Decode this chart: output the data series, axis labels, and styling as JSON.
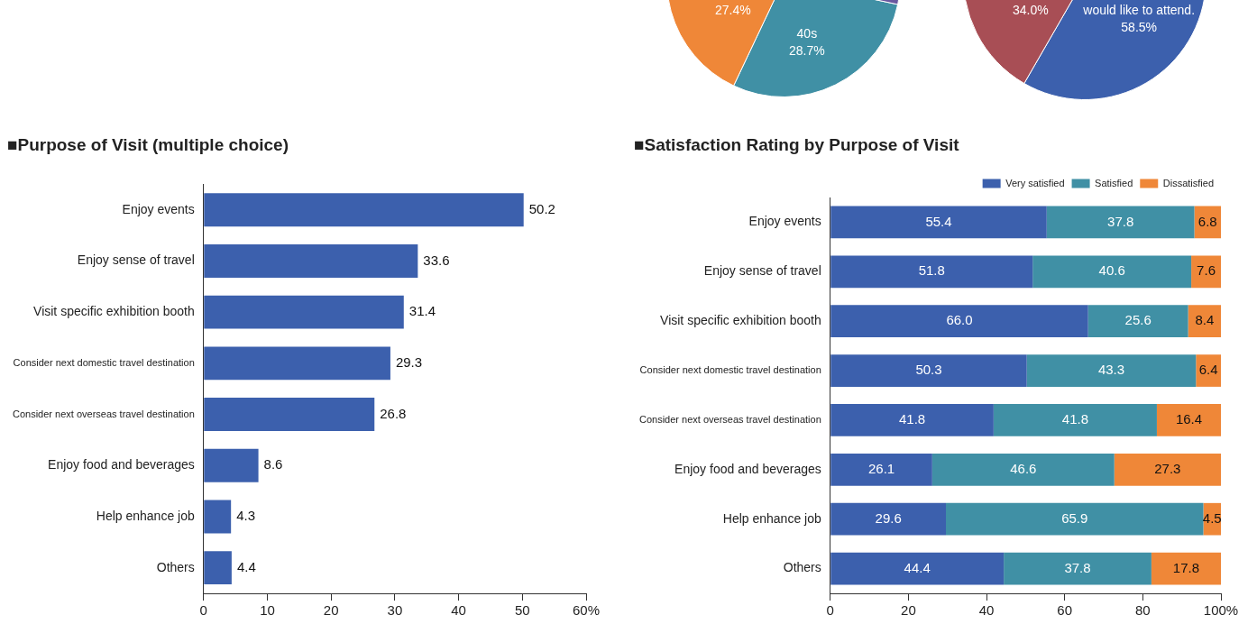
{
  "chart_data": [
    {
      "type": "pie",
      "categories": [
        "40s",
        null,
        null
      ],
      "values": [
        28.7,
        27.4,
        43.9
      ],
      "colors": [
        "#4090a5",
        "#ef8738",
        "#6a58a0"
      ],
      "value_labels": [
        "28.7%",
        "27.4%",
        null
      ]
    },
    {
      "type": "pie",
      "categories": [
        "would like to attend.",
        null
      ],
      "values": [
        58.5,
        34.0
      ],
      "colors": [
        "#3c60ad",
        "#a84e55"
      ],
      "value_labels": [
        "58.5%",
        "34.0%"
      ]
    },
    {
      "type": "bar",
      "orientation": "horizontal",
      "title": "■Purpose of Visit (multiple choice)",
      "categories": [
        "Enjoy events",
        "Enjoy sense of travel",
        "Visit specific exhibition booth",
        "Consider next domestic travel destination",
        "Consider next overseas travel destination",
        "Enjoy food and beverages",
        "Help enhance job",
        "Others"
      ],
      "values": [
        50.2,
        33.6,
        31.4,
        29.3,
        26.8,
        8.6,
        4.3,
        4.4
      ],
      "color": "#3c60ad",
      "xlim": [
        0,
        60
      ],
      "xticks": [
        0,
        10,
        20,
        30,
        40,
        50,
        {
          "value": 60,
          "label": "60%"
        }
      ],
      "data_labels": true,
      "grid": false
    },
    {
      "type": "bar",
      "orientation": "horizontal",
      "stacked": true,
      "title": "■Satisfaction Rating by Purpose of Visit",
      "categories": [
        "Enjoy events",
        "Enjoy sense of travel",
        "Visit specific exhibition booth",
        "Consider next domestic travel destination",
        "Consider next overseas travel destination",
        "Enjoy food and beverages",
        "Help enhance job",
        "Others"
      ],
      "series": [
        {
          "name": "Very satisfied",
          "color": "#3c60ad",
          "values": [
            55.4,
            51.8,
            66.0,
            50.3,
            41.8,
            26.1,
            29.6,
            44.4
          ],
          "value_labels": [
            "55.4",
            "51.8",
            "66.0",
            "50.3",
            "41.8",
            "26.1",
            "29.6",
            "44.4"
          ]
        },
        {
          "name": "Satisfied",
          "color": "#4090a5",
          "values": [
            37.8,
            40.6,
            25.6,
            43.3,
            41.8,
            46.6,
            65.9,
            37.8
          ],
          "value_labels": [
            "37.8",
            "40.6",
            "25.6",
            "43.3",
            "41.8",
            "46.6",
            "65.9",
            "37.8"
          ]
        },
        {
          "name": "Dissatisfied",
          "color": "#ef8738",
          "values": [
            6.8,
            7.6,
            8.4,
            6.4,
            16.4,
            27.3,
            4.5,
            17.8
          ],
          "value_labels": [
            "6.8",
            "7.6",
            "8.4",
            "6.4",
            "16.4",
            "27.3",
            "4.5",
            "17.8"
          ]
        }
      ],
      "xlim": [
        0,
        100
      ],
      "xticks": [
        0,
        20,
        40,
        60,
        80,
        {
          "value": 100,
          "label": "100%"
        }
      ],
      "legend": "top right",
      "grid": false
    }
  ]
}
